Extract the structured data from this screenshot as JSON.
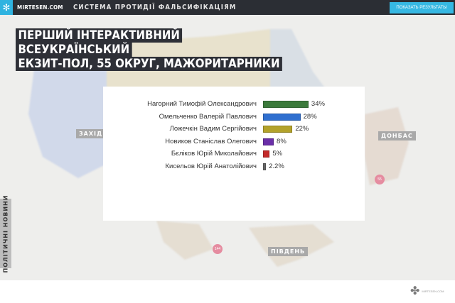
{
  "header": {
    "brand": "MIRTESEN.COM",
    "system_title": "СИСТЕМА ПРОТИДІЇ ФАЛЬСИФІКАЦІЯМ",
    "show_results_button": "ПОКАЗАТЬ РЕЗУЛЬТАТЫ",
    "accent": "#36b8e3"
  },
  "title_lines": [
    "ПЕРШИЙ ІНТЕРАКТИВНИЙ",
    "ВСЕУКРАЇНСЬКИЙ",
    "ЕКЗИТ-ПОЛ, 55 ОКРУГ, МАЖОРИТАРНИКИ"
  ],
  "chart_data": {
    "type": "bar",
    "orientation": "horizontal",
    "categories": [
      "Нагорний Тимофій Олександрович",
      "Омельченко Валерій Павлович",
      "Ложечкін Вадим Сергійович",
      "Новиков Станіслав Олегович",
      "Бєліков Юрій Миколайович",
      "Кисельов Юрій Анатолійович"
    ],
    "values": [
      34,
      28,
      22,
      8,
      5,
      2.2
    ],
    "labels": [
      "34%",
      "28%",
      "22%",
      "8%",
      "5%",
      "2.2%"
    ],
    "colors": [
      "#3b7a3b",
      "#2f6fcf",
      "#b3a22a",
      "#6a2ea8",
      "#c42a2a",
      "#666666"
    ]
  },
  "map": {
    "regions": [
      "ЗАХІД",
      "ДОНБАС",
      "ПІВДЕНЬ"
    ],
    "pins": [
      "55",
      "144"
    ]
  },
  "side_tab": "ПОЛІТИЧНІ НОВИНИ",
  "footer_logo_text": "MIRTESEN.COM"
}
